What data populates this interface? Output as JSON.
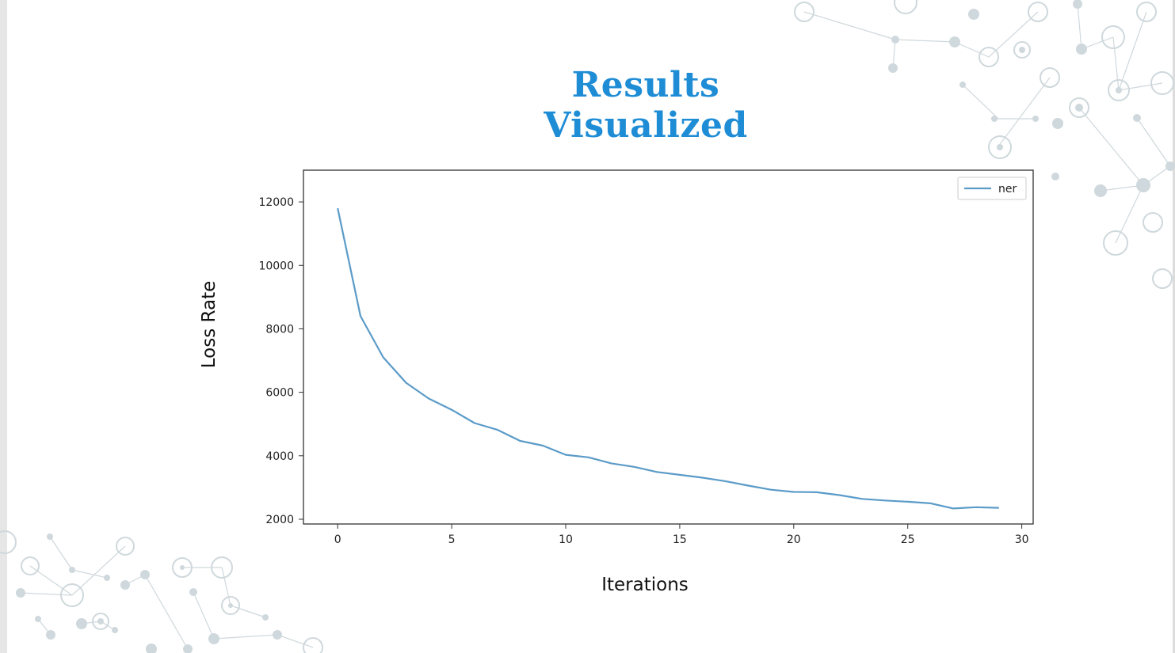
{
  "slide": {
    "title": "Results Visualized",
    "title_color": "#1f8dd6"
  },
  "chart_data": {
    "type": "line",
    "title": "",
    "xlabel": "Iterations",
    "ylabel": "Loss Rate",
    "xlim": [
      -1.5,
      30.5
    ],
    "ylim": [
      1850,
      13000
    ],
    "xticks": [
      0,
      5,
      10,
      15,
      20,
      25,
      30
    ],
    "yticks": [
      2000,
      4000,
      6000,
      8000,
      10000,
      12000
    ],
    "grid": false,
    "legend_position": "top-right",
    "series": [
      {
        "name": "ner",
        "color": "#5b9bc8",
        "x": [
          0,
          1,
          2,
          3,
          4,
          5,
          6,
          7,
          8,
          9,
          10,
          11,
          12,
          13,
          14,
          15,
          16,
          17,
          18,
          19,
          20,
          21,
          22,
          23,
          24,
          25,
          26,
          27,
          28,
          29
        ],
        "y": [
          11800,
          8400,
          7100,
          6300,
          5800,
          5450,
          5030,
          4820,
          4470,
          4320,
          4030,
          3950,
          3760,
          3650,
          3490,
          3400,
          3310,
          3200,
          3060,
          2930,
          2860,
          2850,
          2760,
          2640,
          2590,
          2550,
          2500,
          2340,
          2380,
          2360
        ]
      }
    ]
  }
}
